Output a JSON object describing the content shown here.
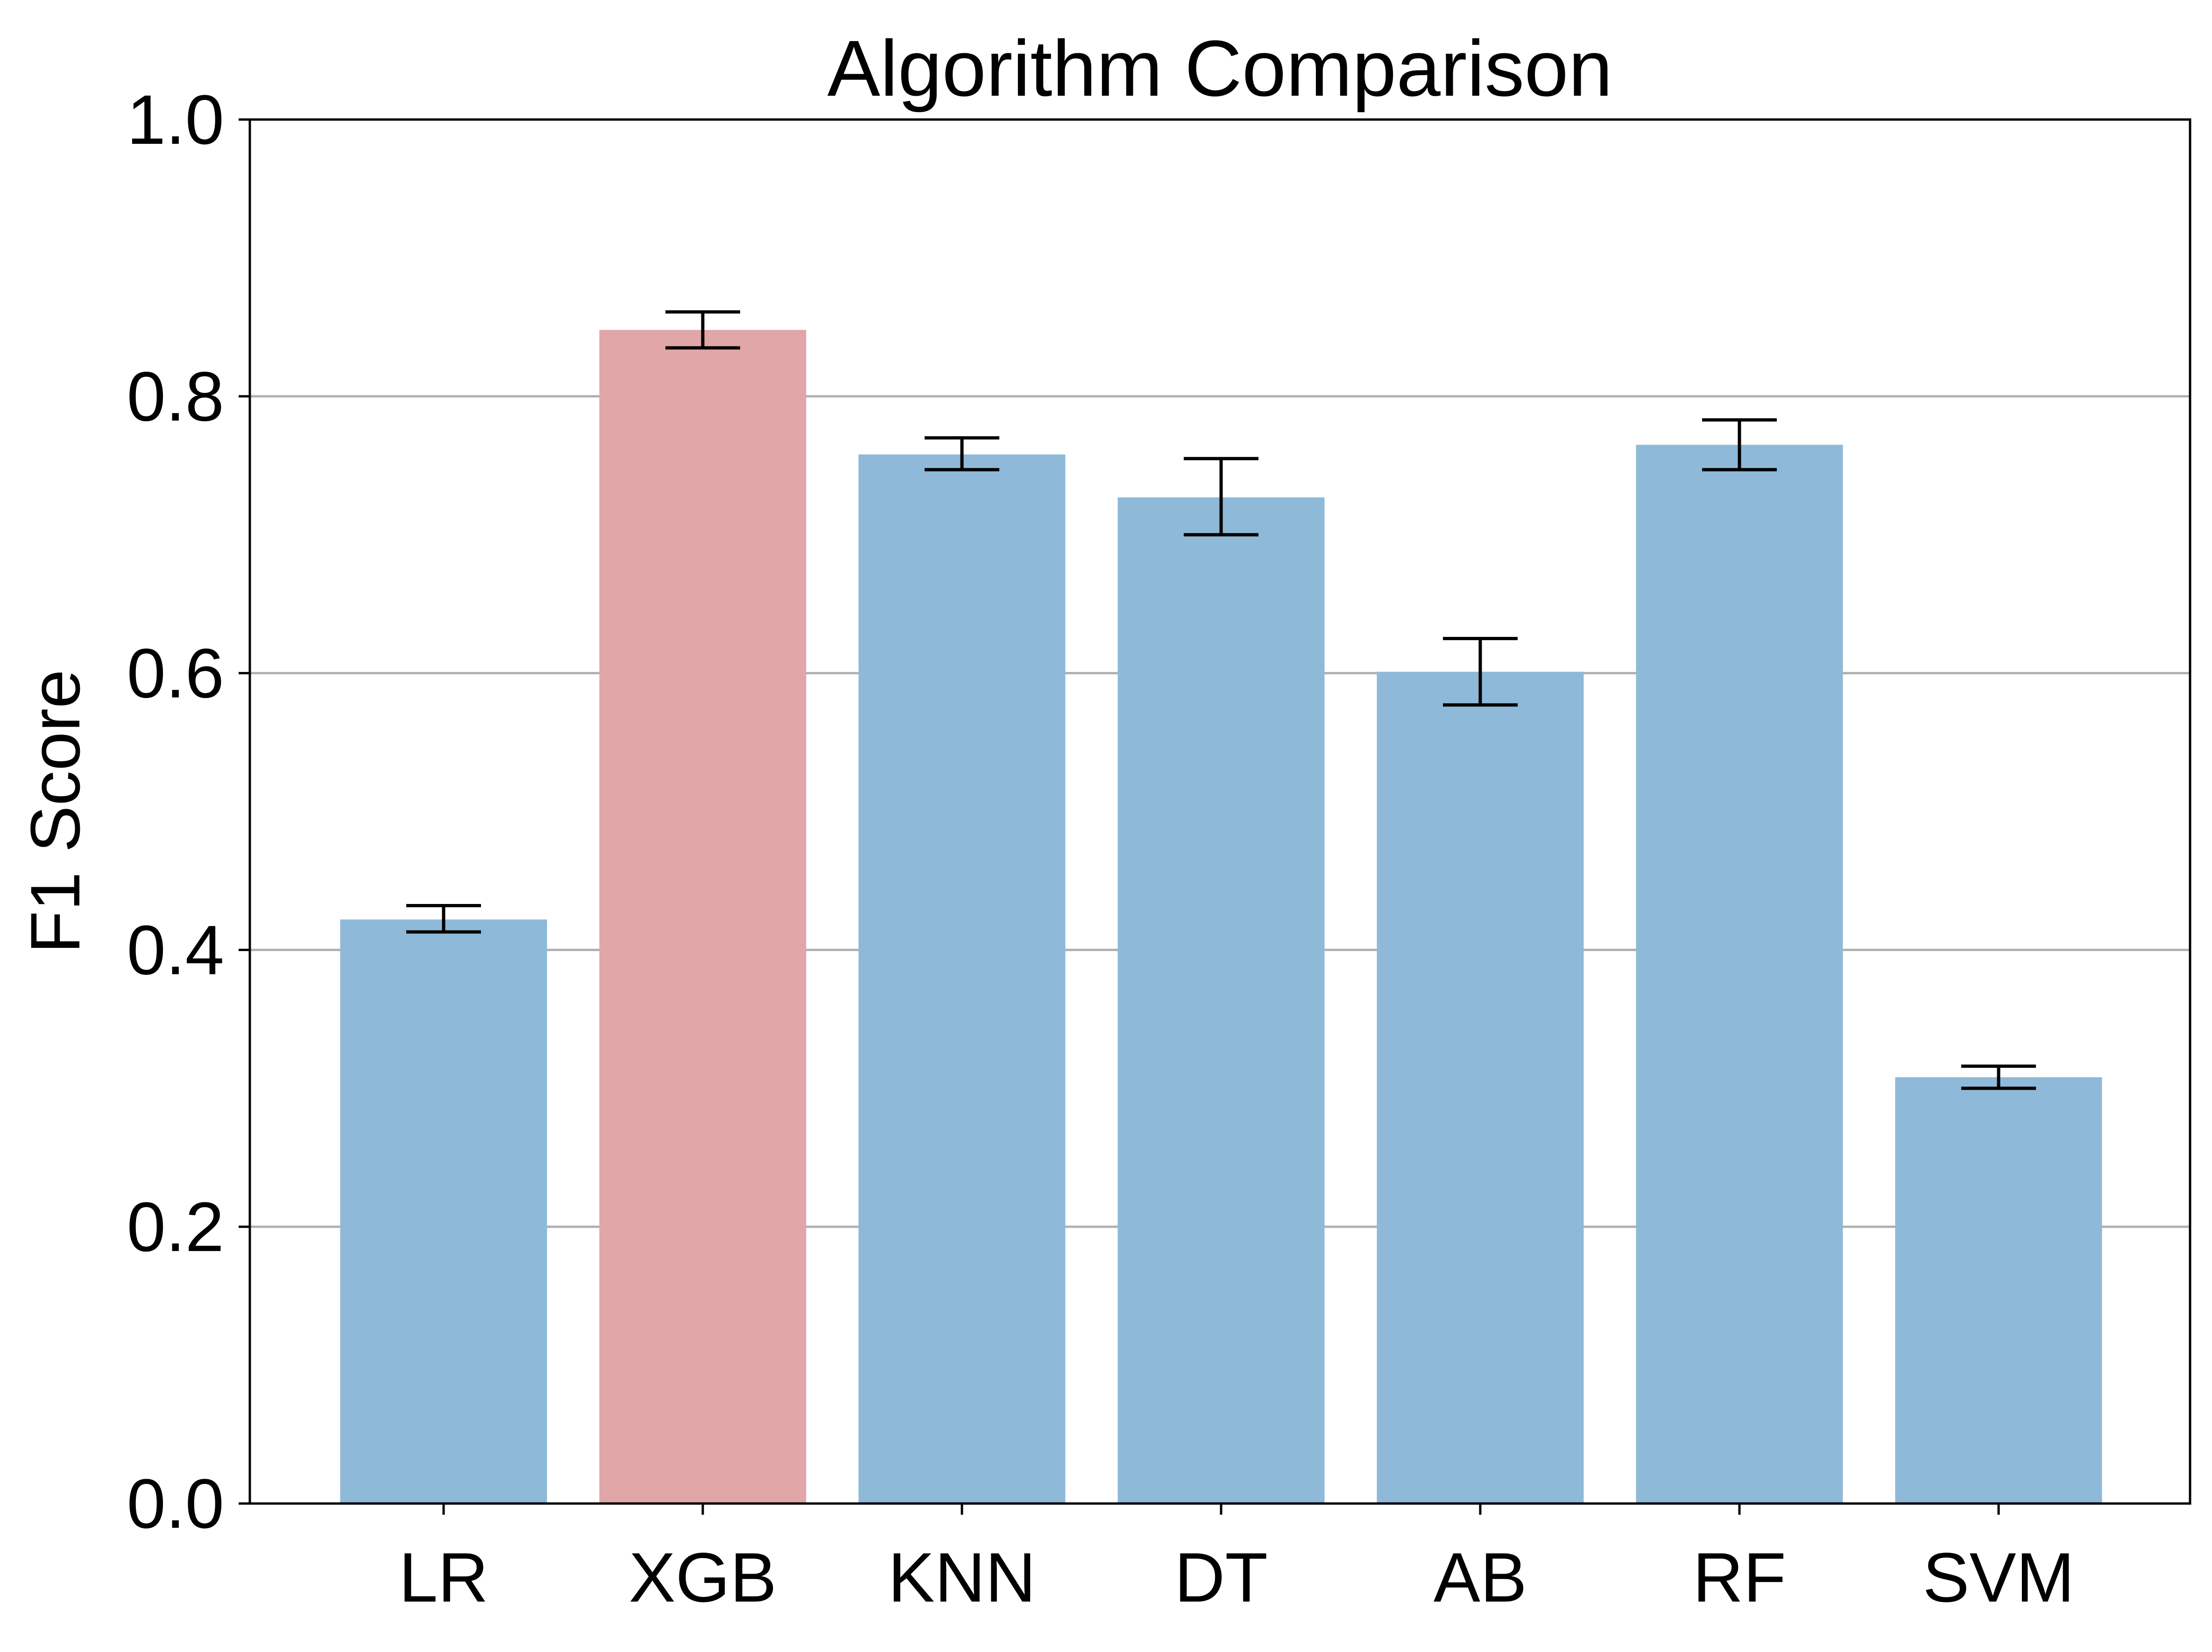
{
  "chart_data": {
    "type": "bar",
    "title": "Algorithm Comparison",
    "xlabel": "",
    "ylabel": "F1 Score",
    "categories": [
      "LR",
      "XGB",
      "KNN",
      "DT",
      "AB",
      "RF",
      "SVM"
    ],
    "values": [
      0.422,
      0.848,
      0.758,
      0.727,
      0.601,
      0.765,
      0.308
    ],
    "error_low": [
      0.413,
      0.835,
      0.747,
      0.7,
      0.577,
      0.747,
      0.3
    ],
    "error_high": [
      0.432,
      0.861,
      0.77,
      0.755,
      0.625,
      0.783,
      0.316
    ],
    "ylim": [
      0,
      1.0
    ],
    "yticks": [
      "0.0",
      "0.2",
      "0.4",
      "0.6",
      "0.8",
      "1.0"
    ],
    "ytick_values": [
      0,
      0.2,
      0.4,
      0.6,
      0.8,
      1.0
    ],
    "grid": "y",
    "highlight_category": "XGB",
    "colors": {
      "bar": "#8fb9d8",
      "highlight": "#e0a6a8",
      "error_bar": "#000000",
      "grid": "#b0b0b0",
      "axis": "#000000"
    }
  }
}
